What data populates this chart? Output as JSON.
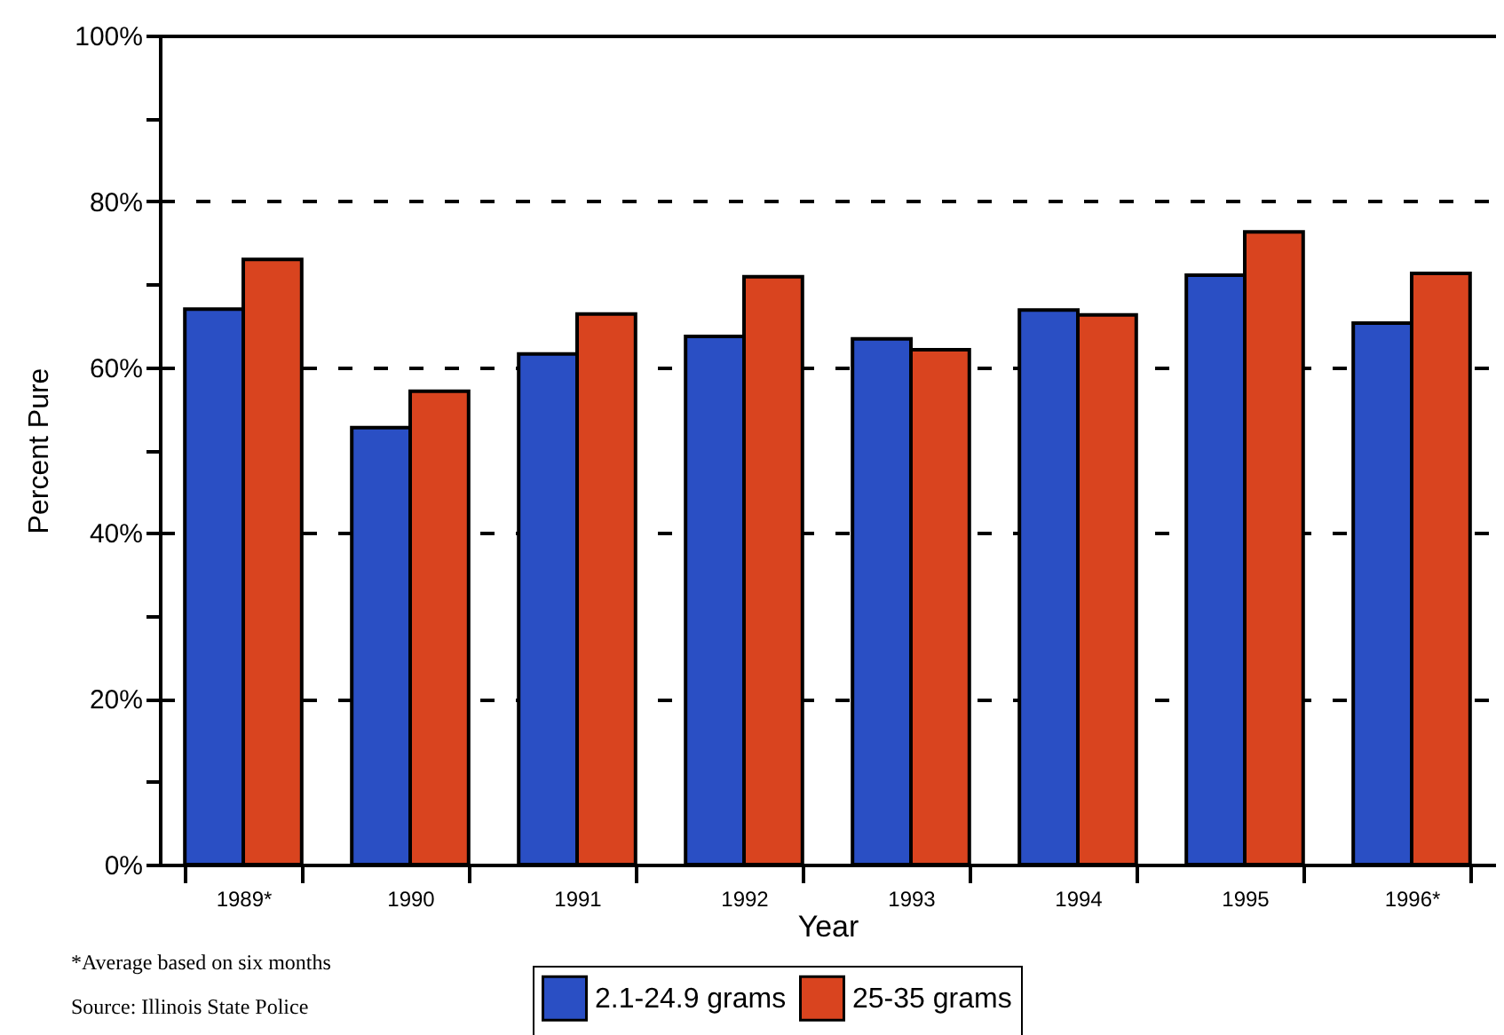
{
  "chart_data": {
    "type": "bar",
    "xlabel": "Year",
    "ylabel": "Percent Pure",
    "categories": [
      "1989*",
      "1990",
      "1991",
      "1992",
      "1993",
      "1994",
      "1995",
      "1996*"
    ],
    "series": [
      {
        "name": "2.1-24.9 grams",
        "color": "#2a4fc4",
        "values": [
          67,
          52.7,
          61.6,
          63.7,
          63.4,
          66.9,
          71.1,
          65.3
        ]
      },
      {
        "name": "25-35 grams",
        "color": "#d9441f",
        "values": [
          73,
          57.1,
          66.4,
          70.9,
          62.1,
          66.3,
          76.3,
          71.3
        ]
      }
    ],
    "ylim": [
      0,
      100
    ],
    "yticks": [
      {
        "value": 0,
        "label": "0%"
      },
      {
        "value": 10,
        "label": null
      },
      {
        "value": 20,
        "label": "20%"
      },
      {
        "value": 30,
        "label": null
      },
      {
        "value": 40,
        "label": "40%"
      },
      {
        "value": 50,
        "label": null
      },
      {
        "value": 60,
        "label": "60%"
      },
      {
        "value": 70,
        "label": null
      },
      {
        "value": 80,
        "label": "80%"
      },
      {
        "value": 90,
        "label": null
      },
      {
        "value": 100,
        "label": "100%"
      }
    ],
    "grid": "y",
    "legend": "bottom",
    "annotations": [
      "*Average based on six months",
      "Source: Illinois State Police"
    ]
  }
}
